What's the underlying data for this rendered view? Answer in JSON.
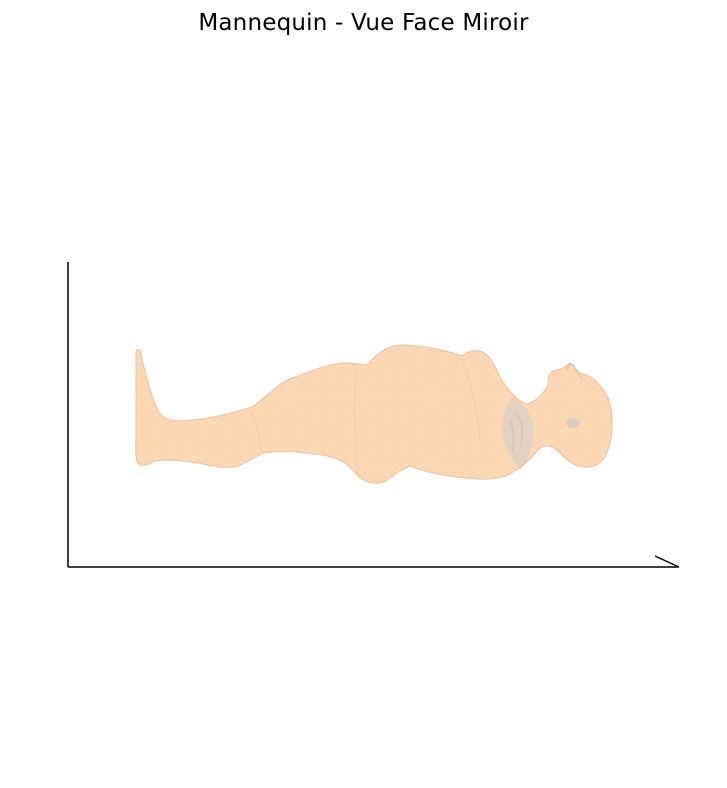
{
  "figure": {
    "title": "Mannequin - Vue Face Miroir",
    "mesh_fill_color": "#fdd8b4",
    "mesh_edge_color": "#e6c2a2",
    "mesh_shadow_color": "#cfc8c2",
    "axis_color": "#000000"
  }
}
